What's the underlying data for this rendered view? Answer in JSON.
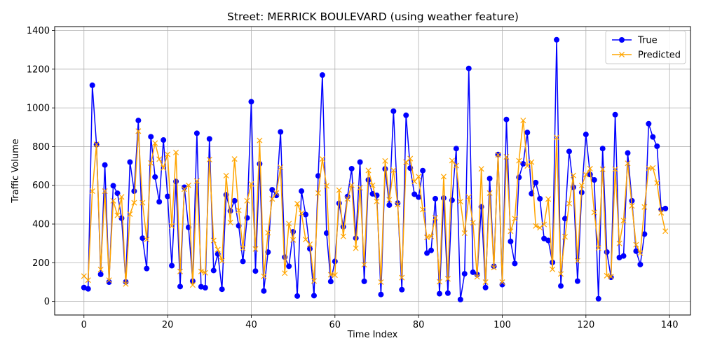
{
  "chart_data": {
    "type": "line",
    "title": "Street: MERRICK BOULEVARD (using weather feature)",
    "xlabel": "Time Index",
    "ylabel": "Traffic Volume",
    "xlim": [
      -7,
      145
    ],
    "ylim": [
      -70,
      1420
    ],
    "xticks": [
      0,
      20,
      40,
      60,
      80,
      100,
      120,
      140
    ],
    "yticks": [
      0,
      200,
      400,
      600,
      800,
      1000,
      1200,
      1400
    ],
    "grid": true,
    "legend_position": "top-right",
    "series": [
      {
        "name": "True",
        "color": "#0000ff",
        "marker": "circle",
        "values": [
          72,
          65,
          1117,
          810,
          140,
          705,
          100,
          598,
          559,
          430,
          101,
          720,
          570,
          935,
          327,
          170,
          851,
          643,
          515,
          834,
          543,
          185,
          620,
          77,
          590,
          383,
          105,
          869,
          76,
          71,
          840,
          160,
          245,
          63,
          551,
          468,
          520,
          391,
          207,
          432,
          1032,
          157,
          711,
          54,
          255,
          577,
          548,
          876,
          229,
          182,
          360,
          28,
          570,
          449,
          272,
          30,
          649,
          1170,
          353,
          103,
          207,
          507,
          386,
          542,
          686,
          327,
          720,
          104,
          628,
          556,
          548,
          36,
          685,
          498,
          983,
          508,
          61,
          962,
          689,
          554,
          539,
          676,
          250,
          264,
          531,
          40,
          534,
          43,
          523,
          790,
          10,
          143,
          1204,
          151,
          139,
          489,
          72,
          635,
          182,
          759,
          87,
          940,
          310,
          196,
          641,
          711,
          873,
          557,
          614,
          531,
          325,
          315,
          202,
          1352,
          80,
          428,
          775,
          590,
          105,
          563,
          863,
          656,
          628,
          14,
          790,
          255,
          125,
          965,
          227,
          235,
          767,
          520,
          260,
          191,
          348,
          918,
          850,
          802,
          474,
          480
        ]
      },
      {
        "name": "Predicted",
        "color": "#ffa500",
        "marker": "x",
        "values": [
          131,
          110,
          570,
          812,
          165,
          570,
          110,
          520,
          445,
          540,
          90,
          451,
          510,
          880,
          510,
          320,
          715,
          818,
          735,
          690,
          760,
          390,
          770,
          155,
          580,
          600,
          85,
          622,
          155,
          148,
          733,
          315,
          268,
          210,
          650,
          408,
          736,
          471,
          275,
          520,
          607,
          271,
          832,
          130,
          355,
          530,
          560,
          693,
          146,
          402,
          318,
          505,
          455,
          320,
          295,
          106,
          560,
          736,
          597,
          138,
          136,
          575,
          336,
          530,
          601,
          275,
          587,
          190,
          677,
          600,
          517,
          100,
          726,
          525,
          678,
          500,
          123,
          720,
          738,
          620,
          645,
          475,
          331,
          336,
          432,
          102,
          645,
          117,
          728,
          702,
          516,
          353,
          540,
          407,
          127,
          685,
          100,
          560,
          175,
          758,
          100,
          747,
          363,
          428,
          727,
          935,
          700,
          720,
          390,
          381,
          398,
          529,
          166,
          847,
          142,
          334,
          506,
          651,
          210,
          599,
          655,
          686,
          460,
          276,
          683,
          133,
          128,
          683,
          300,
          418,
          714,
          494,
          293,
          250,
          488,
          688,
          690,
          612,
          458,
          363
        ]
      }
    ]
  }
}
